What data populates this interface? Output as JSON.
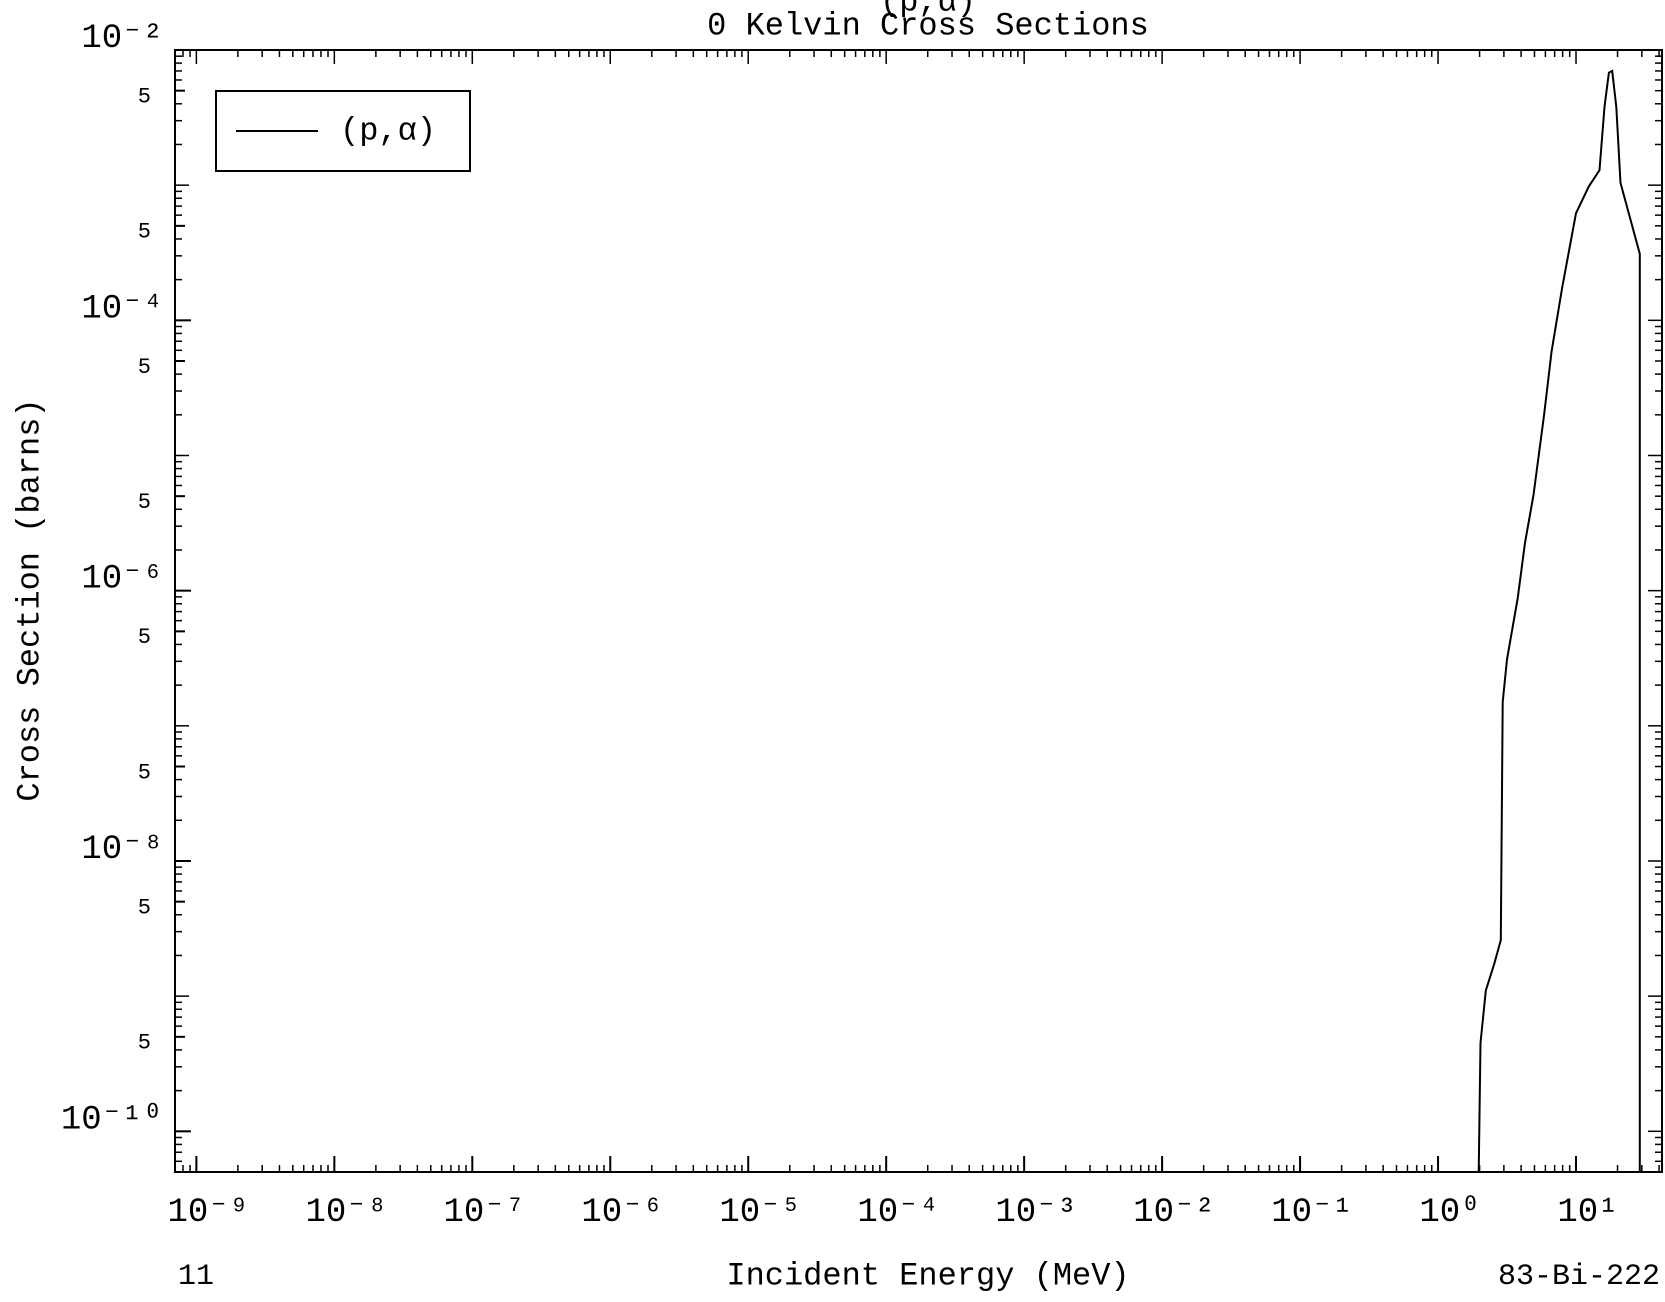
{
  "chart_data": {
    "type": "line",
    "title": "(p,α)",
    "subtitle": "0 Kelvin Cross Sections",
    "x_label": "Incident Energy (MeV)",
    "y_label": "Cross Section (barns)",
    "footer_left": "11",
    "footer_right": "83-Bi-222",
    "log_x": true,
    "log_y": true,
    "legend": "upper left",
    "xlim": [
      7e-10,
      42
    ],
    "ylim": [
      5e-11,
      0.01
    ],
    "xticks": [
      {
        "value": 1e-09,
        "label": "10⁻⁹"
      },
      {
        "value": 1e-08,
        "label": "10⁻⁸"
      },
      {
        "value": 1e-07,
        "label": "10⁻⁷"
      },
      {
        "value": 1e-06,
        "label": "10⁻⁶"
      },
      {
        "value": 1e-05,
        "label": "10⁻⁵"
      },
      {
        "value": 0.0001,
        "label": "10⁻⁴"
      },
      {
        "value": 0.001,
        "label": "10⁻³"
      },
      {
        "value": 0.01,
        "label": "10⁻²"
      },
      {
        "value": 0.1,
        "label": "10⁻¹"
      },
      {
        "value": 1,
        "label": "10⁰"
      },
      {
        "value": 10,
        "label": "10¹"
      }
    ],
    "yticks": [
      {
        "value": 0.01,
        "label": "10⁻²"
      },
      {
        "value": 0.005,
        "label": "5"
      },
      {
        "value": 0.0005,
        "label": "5"
      },
      {
        "value": 0.0001,
        "label": "10⁻⁴"
      },
      {
        "value": 5e-05,
        "label": "5"
      },
      {
        "value": 5e-06,
        "label": "5"
      },
      {
        "value": 1e-06,
        "label": "10⁻⁶"
      },
      {
        "value": 5e-07,
        "label": "5"
      },
      {
        "value": 5e-08,
        "label": "5"
      },
      {
        "value": 1e-08,
        "label": "10⁻⁸"
      },
      {
        "value": 5e-09,
        "label": "5"
      },
      {
        "value": 5e-10,
        "label": "5"
      },
      {
        "value": 1e-10,
        "label": "10⁻¹⁰"
      }
    ],
    "series": [
      {
        "name": "(p,α)",
        "color": "#000000",
        "x": [
          1.93,
          2.03,
          2.22,
          2.56,
          2.85,
          2.94,
          3.16,
          3.78,
          4.27,
          4.92,
          5.87,
          6.65,
          7.94,
          10,
          12.4,
          14.8,
          16.1,
          17.3,
          18.3,
          19.6,
          21.0,
          29.0,
          29.0
        ],
        "values": [
          1e-11,
          4.5e-10,
          1.1e-09,
          1.75e-09,
          2.6e-09,
          1.5e-07,
          3.1e-07,
          8.8e-07,
          2.26e-06,
          5.1e-06,
          2e-05,
          5.9e-05,
          0.000175,
          0.00062,
          0.00098,
          0.00129,
          0.0038,
          0.0068,
          0.007,
          0.0038,
          0.00104,
          0.00031,
          1e-11
        ]
      }
    ]
  }
}
